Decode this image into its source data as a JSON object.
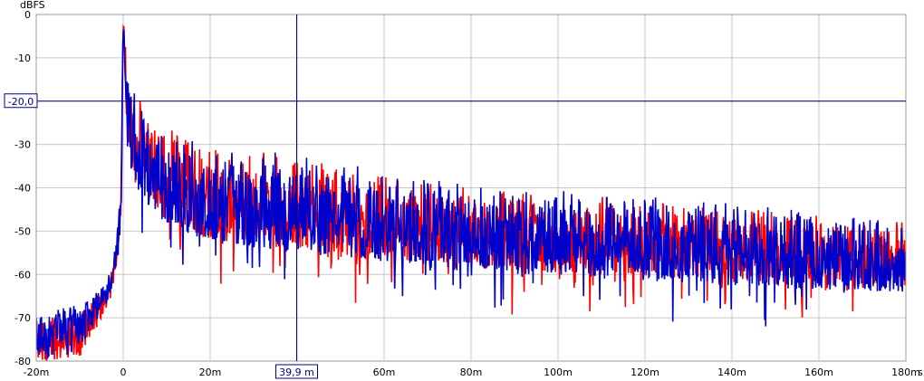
{
  "chart_data": {
    "type": "line",
    "ylabel": "dBFS",
    "x_unit": "s",
    "xlim": [
      -20,
      180
    ],
    "ylim": [
      -80,
      0
    ],
    "x_ticks": [
      "-20m",
      "0",
      "20m",
      "40m",
      "60m",
      "80m",
      "100m",
      "120m",
      "140m",
      "160m",
      "180m"
    ],
    "y_ticks": [
      "0",
      "-10",
      "-20",
      "-30",
      "-40",
      "-50",
      "-60",
      "-70",
      "-80"
    ],
    "grid": true,
    "series": [
      {
        "color": "#ff0000",
        "peak": [
          [
            -20,
            -71
          ],
          [
            -10,
            -68
          ],
          [
            -5,
            -64
          ],
          [
            -3,
            -60
          ],
          [
            -1.5,
            -53
          ],
          [
            -0.5,
            -40
          ],
          [
            0,
            0
          ],
          [
            1,
            -13
          ],
          [
            3,
            -18
          ],
          [
            8,
            -25
          ],
          [
            20,
            -30
          ],
          [
            40,
            -33
          ],
          [
            60,
            -37
          ],
          [
            80,
            -40
          ],
          [
            100,
            -41
          ],
          [
            120,
            -42
          ],
          [
            140,
            -44
          ],
          [
            160,
            -46
          ],
          [
            180,
            -48
          ]
        ],
        "floor": [
          [
            -20,
            -80
          ],
          [
            -10,
            -80
          ],
          [
            -5,
            -70
          ],
          [
            -3,
            -66
          ],
          [
            -1.5,
            -60
          ],
          [
            -0.5,
            -50
          ],
          [
            0,
            -15
          ],
          [
            1,
            -35
          ],
          [
            3,
            -44
          ],
          [
            8,
            -50
          ],
          [
            20,
            -56
          ],
          [
            40,
            -58
          ],
          [
            60,
            -60
          ],
          [
            80,
            -62
          ],
          [
            100,
            -63
          ],
          [
            120,
            -64
          ],
          [
            140,
            -65
          ],
          [
            160,
            -66
          ],
          [
            180,
            -66
          ]
        ]
      },
      {
        "color": "#0000cc",
        "peak": [
          [
            -20,
            -69
          ],
          [
            -10,
            -67
          ],
          [
            -5,
            -63
          ],
          [
            -3,
            -59
          ],
          [
            -1.5,
            -52
          ],
          [
            -0.5,
            -39
          ],
          [
            0,
            0
          ],
          [
            1,
            -12
          ],
          [
            3,
            -19
          ],
          [
            8,
            -26
          ],
          [
            20,
            -30
          ],
          [
            40,
            -32
          ],
          [
            60,
            -36
          ],
          [
            80,
            -39
          ],
          [
            100,
            -40
          ],
          [
            120,
            -42
          ],
          [
            140,
            -43
          ],
          [
            160,
            -45
          ],
          [
            180,
            -47
          ]
        ],
        "floor": [
          [
            -20,
            -80
          ],
          [
            -10,
            -78
          ],
          [
            -5,
            -69
          ],
          [
            -3,
            -65
          ],
          [
            -1.5,
            -59
          ],
          [
            -0.5,
            -49
          ],
          [
            0,
            -14
          ],
          [
            1,
            -36
          ],
          [
            3,
            -45
          ],
          [
            8,
            -51
          ],
          [
            20,
            -57
          ],
          [
            40,
            -59
          ],
          [
            60,
            -61
          ],
          [
            80,
            -63
          ],
          [
            100,
            -64
          ],
          [
            120,
            -65
          ],
          [
            140,
            -66
          ],
          [
            160,
            -67
          ],
          [
            180,
            -67
          ]
        ]
      }
    ],
    "cursor_x": {
      "value": 39.9,
      "label": "39,9 m"
    },
    "cursor_y": {
      "value": -20,
      "label": "-20,0"
    }
  }
}
